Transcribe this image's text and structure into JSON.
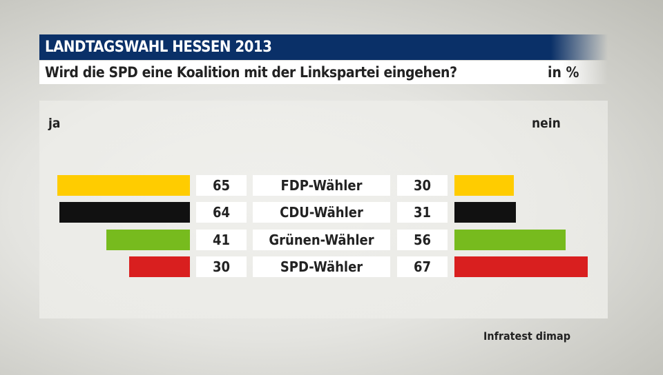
{
  "header": {
    "title": "LANDTAGSWAHL HESSEN 2013",
    "question": "Wird die SPD eine Koalition mit der Linkspartei eingehen?",
    "unit": "in %"
  },
  "source": "Infratest dimap",
  "chart_data": {
    "type": "bar",
    "left_label": "ja",
    "right_label": "nein",
    "categories": [
      "FDP-Wähler",
      "CDU-Wähler",
      "Grünen-Wähler",
      "SPD-Wähler"
    ],
    "series": [
      {
        "name": "ja",
        "values": [
          65,
          64,
          41,
          30
        ]
      },
      {
        "name": "nein",
        "values": [
          30,
          31,
          56,
          67
        ]
      }
    ],
    "colors": [
      "#ffcc00",
      "#111111",
      "#77bb1e",
      "#d91f1f"
    ],
    "xlim": [
      0,
      100
    ]
  }
}
